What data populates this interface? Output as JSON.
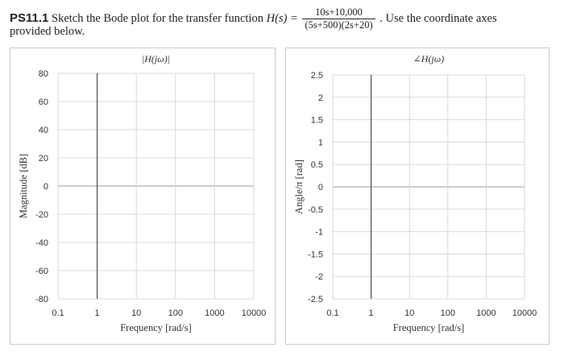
{
  "problem": {
    "id": "PS11.1",
    "text_before": "Sketch the Bode plot for the transfer function",
    "function_label": "H(s) =",
    "numerator": "10s+10,000",
    "denominator": "(5s+500)(2s+20)",
    "text_after": ". Use the coordinate axes",
    "text_line2": "provided below."
  },
  "chart_data": [
    {
      "type": "line",
      "title": "|H(jω)|",
      "xlabel": "Frequency [rad/s]",
      "ylabel": "Magnitude [dB]",
      "x_scale": "log",
      "xlim": [
        0.1,
        10000
      ],
      "ylim": [
        -80,
        80
      ],
      "x_ticks": [
        0.1,
        1,
        10,
        100,
        1000,
        10000
      ],
      "x_tick_labels": [
        "0.1",
        "1",
        "10",
        "100",
        "1000",
        "10000"
      ],
      "y_ticks": [
        -80,
        -60,
        -40,
        -20,
        0,
        20,
        40,
        60,
        80
      ],
      "y_tick_labels": [
        "-80",
        "-60",
        "-40",
        "-20",
        "0",
        "20",
        "40",
        "60",
        "80"
      ],
      "grid": true,
      "series": []
    },
    {
      "type": "line",
      "title": "∠H(jω)",
      "xlabel": "Frequency [rad/s]",
      "ylabel": "Angle/π [rad]",
      "x_scale": "log",
      "xlim": [
        0.1,
        10000
      ],
      "ylim": [
        -2.5,
        2.5
      ],
      "x_ticks": [
        0.1,
        1,
        10,
        100,
        1000,
        10000
      ],
      "x_tick_labels": [
        "0.1",
        "1",
        "10",
        "100",
        "1000",
        "10000"
      ],
      "y_ticks": [
        -2.5,
        -2,
        -1.5,
        -1,
        -0.5,
        0,
        0.5,
        1,
        1.5,
        2,
        2.5
      ],
      "y_tick_labels": [
        "-2.5",
        "-2",
        "-1.5",
        "-1",
        "-0.5",
        "0",
        "0.5",
        "1",
        "1.5",
        "2",
        "2.5"
      ],
      "grid": true,
      "series": []
    }
  ],
  "colors": {
    "grid": "#d9d9d9",
    "axis": "#555555",
    "panel_border": "#c9c9c9"
  }
}
